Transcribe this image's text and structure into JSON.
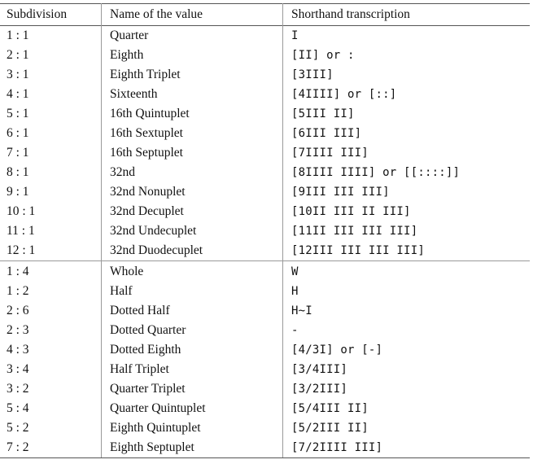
{
  "caption_fragment": "",
  "headers": {
    "subdivision": "Subdivision",
    "name": "Name of the value",
    "shorthand": "Shorthand transcription"
  },
  "group1": [
    {
      "sub": "1 : 1",
      "name": "Quarter",
      "short": "I"
    },
    {
      "sub": "2 : 1",
      "name": "Eighth",
      "short": "[II] or :"
    },
    {
      "sub": "3 : 1",
      "name": "Eighth Triplet",
      "short": "[3III]"
    },
    {
      "sub": "4 : 1",
      "name": "Sixteenth",
      "short": "[4IIII] or [::]"
    },
    {
      "sub": "5 : 1",
      "name": "16th Quintuplet",
      "short": "[5III II]"
    },
    {
      "sub": "6 : 1",
      "name": "16th Sextuplet",
      "short": "[6III III]"
    },
    {
      "sub": "7 : 1",
      "name": "16th Septuplet",
      "short": "[7IIII III]"
    },
    {
      "sub": "8 : 1",
      "name": "32nd",
      "short": "[8IIII IIII] or [[::::]]"
    },
    {
      "sub": "9 : 1",
      "name": "32nd Nonuplet",
      "short": "[9III III III]"
    },
    {
      "sub": "10 : 1",
      "name": "32nd Decuplet",
      "short": "[10II III II III]"
    },
    {
      "sub": "11 : 1",
      "name": "32nd Undecuplet",
      "short": "[11II III III III]"
    },
    {
      "sub": "12 : 1",
      "name": "32nd Duodecuplet",
      "short": "[12III III III III]"
    }
  ],
  "group2": [
    {
      "sub": "1 : 4",
      "name": "Whole",
      "short": "W"
    },
    {
      "sub": "1 : 2",
      "name": "Half",
      "short": "H"
    },
    {
      "sub": "2 : 6",
      "name": "Dotted Half",
      "short": "H~I"
    },
    {
      "sub": "2 : 3",
      "name": "Dotted Quarter",
      "short": "-"
    },
    {
      "sub": "4 : 3",
      "name": "Dotted Eighth",
      "short": "[4/3I] or [-]"
    },
    {
      "sub": "3 : 4",
      "name": "Half Triplet",
      "short": "[3/4III]"
    },
    {
      "sub": "3 : 2",
      "name": "Quarter Triplet",
      "short": "[3/2III]"
    },
    {
      "sub": "5 : 4",
      "name": "Quarter Quintuplet",
      "short": "[5/4III II]"
    },
    {
      "sub": "5 : 2",
      "name": "Eighth Quintuplet",
      "short": "[5/2III II]"
    },
    {
      "sub": "7 : 2",
      "name": "Eighth Septuplet",
      "short": "[7/2IIII III]"
    }
  ]
}
